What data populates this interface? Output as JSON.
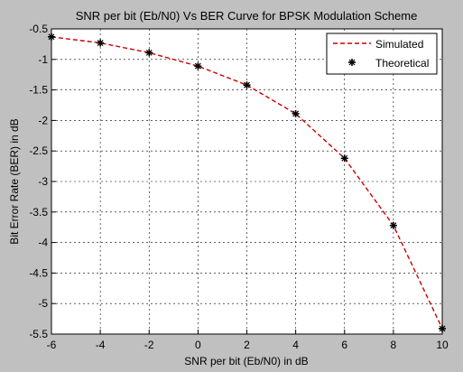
{
  "chart_data": {
    "type": "line",
    "title": "SNR per bit (Eb/N0) Vs BER Curve for BPSK Modulation Scheme",
    "xlabel": "SNR per bit (Eb/N0) in dB",
    "ylabel": "Bit Error Rate (BER) in dB",
    "xlim": [
      -6,
      10
    ],
    "ylim": [
      -5.5,
      -0.5
    ],
    "xticks": [
      -6,
      -4,
      -2,
      0,
      2,
      4,
      6,
      8,
      10
    ],
    "yticks": [
      -0.5,
      -1,
      -1.5,
      -2,
      -2.5,
      -3,
      -3.5,
      -4,
      -4.5,
      -5,
      -5.5
    ],
    "grid": true,
    "legend_position": "top-right",
    "series": [
      {
        "name": "Simulated",
        "style": "dashed-line",
        "color": "#cc0000",
        "x": [
          -6,
          -4,
          -2,
          0,
          2,
          4,
          6,
          8,
          10
        ],
        "y": [
          -0.63,
          -0.73,
          -0.89,
          -1.11,
          -1.42,
          -1.89,
          -2.62,
          -3.72,
          -5.41
        ]
      },
      {
        "name": "Theoretical",
        "style": "star-markers",
        "color": "#000000",
        "x": [
          -6,
          -4,
          -2,
          0,
          2,
          4,
          6,
          8,
          10
        ],
        "y": [
          -0.63,
          -0.73,
          -0.89,
          -1.11,
          -1.42,
          -1.89,
          -2.62,
          -3.72,
          -5.41
        ]
      }
    ]
  }
}
